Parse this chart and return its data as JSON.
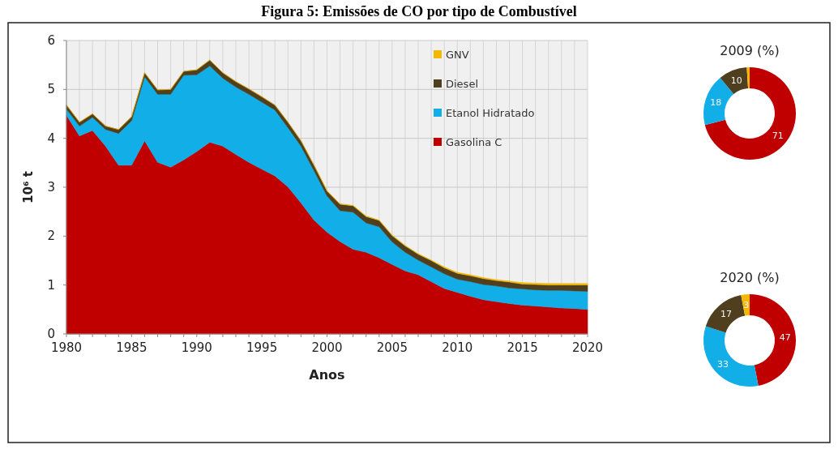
{
  "chart_data": [
    {
      "type": "area",
      "title": "Figura 5: Emissões de CO por tipo de Combustível",
      "xlabel": "Anos",
      "ylabel": "10⁶ t",
      "stacked": true,
      "grid": true,
      "legend": "top right",
      "x": [
        1980,
        1981,
        1982,
        1983,
        1984,
        1985,
        1986,
        1987,
        1988,
        1989,
        1990,
        1991,
        1992,
        1993,
        1994,
        1995,
        1996,
        1997,
        1998,
        1999,
        2000,
        2001,
        2002,
        2003,
        2004,
        2005,
        2006,
        2007,
        2008,
        2009,
        2010,
        2011,
        2012,
        2013,
        2014,
        2015,
        2016,
        2017,
        2018,
        2019,
        2020
      ],
      "xlim": [
        1980,
        2020
      ],
      "xticks": [
        1980,
        {
          "value": 1981,
          "label": null
        },
        {
          "value": 1982,
          "label": null
        },
        {
          "value": 1983,
          "label": null
        },
        {
          "value": 1984,
          "label": null
        },
        1985,
        {
          "value": 1986,
          "label": null
        },
        {
          "value": 1987,
          "label": null
        },
        {
          "value": 1988,
          "label": null
        },
        {
          "value": 1989,
          "label": null
        },
        1990,
        {
          "value": 1991,
          "label": null
        },
        {
          "value": 1992,
          "label": null
        },
        {
          "value": 1993,
          "label": null
        },
        {
          "value": 1994,
          "label": null
        },
        1995,
        {
          "value": 1996,
          "label": null
        },
        {
          "value": 1997,
          "label": null
        },
        {
          "value": 1998,
          "label": null
        },
        {
          "value": 1999,
          "label": null
        },
        2000,
        {
          "value": 2001,
          "label": null
        },
        {
          "value": 2002,
          "label": null
        },
        {
          "value": 2003,
          "label": null
        },
        {
          "value": 2004,
          "label": null
        },
        2005,
        {
          "value": 2006,
          "label": null
        },
        {
          "value": 2007,
          "label": null
        },
        {
          "value": 2008,
          "label": null
        },
        {
          "value": 2009,
          "label": null
        },
        2010,
        {
          "value": 2011,
          "label": null
        },
        {
          "value": 2012,
          "label": null
        },
        {
          "value": 2013,
          "label": null
        },
        {
          "value": 2014,
          "label": null
        },
        2015,
        {
          "value": 2016,
          "label": null
        },
        {
          "value": 2017,
          "label": null
        },
        {
          "value": 2018,
          "label": null
        },
        {
          "value": 2019,
          "label": null
        },
        2020
      ],
      "ylim": [
        0,
        6
      ],
      "yticks": [
        0,
        1,
        2,
        3,
        4,
        5,
        6
      ],
      "series": [
        {
          "name": "Gasolina C",
          "color": "#c00000",
          "values": [
            4.47,
            4.05,
            4.16,
            3.84,
            3.45,
            3.45,
            3.95,
            3.51,
            3.41,
            3.56,
            3.73,
            3.92,
            3.84,
            3.67,
            3.51,
            3.37,
            3.23,
            3.01,
            2.68,
            2.33,
            2.08,
            1.89,
            1.73,
            1.67,
            1.56,
            1.42,
            1.29,
            1.21,
            1.07,
            0.93,
            0.85,
            0.77,
            0.7,
            0.66,
            0.62,
            0.59,
            0.57,
            0.55,
            0.53,
            0.52,
            0.5
          ]
        },
        {
          "name": "Etanol Hidratado",
          "color": "#12aee8",
          "values": [
            0.13,
            0.2,
            0.27,
            0.34,
            0.65,
            0.91,
            1.31,
            1.39,
            1.49,
            1.73,
            1.57,
            1.56,
            1.39,
            1.38,
            1.39,
            1.37,
            1.35,
            1.21,
            1.16,
            1.01,
            0.74,
            0.63,
            0.76,
            0.6,
            0.63,
            0.46,
            0.38,
            0.3,
            0.3,
            0.3,
            0.27,
            0.3,
            0.31,
            0.32,
            0.32,
            0.33,
            0.33,
            0.34,
            0.36,
            0.36,
            0.37
          ]
        },
        {
          "name": "Diesel",
          "color": "#4f3f1f",
          "values": [
            0.08,
            0.08,
            0.07,
            0.07,
            0.08,
            0.08,
            0.08,
            0.09,
            0.1,
            0.08,
            0.1,
            0.12,
            0.11,
            0.11,
            0.11,
            0.11,
            0.1,
            0.11,
            0.11,
            0.11,
            0.1,
            0.13,
            0.13,
            0.13,
            0.13,
            0.13,
            0.13,
            0.12,
            0.13,
            0.12,
            0.12,
            0.12,
            0.12,
            0.11,
            0.12,
            0.1,
            0.11,
            0.11,
            0.11,
            0.12,
            0.13
          ]
        },
        {
          "name": "GNV",
          "color": "#f5b800",
          "values": [
            0,
            0,
            0,
            0,
            0,
            0,
            0,
            0,
            0,
            0,
            0,
            0,
            0,
            0,
            0,
            0,
            0,
            0,
            0,
            0,
            0.01,
            0.01,
            0.01,
            0.01,
            0.01,
            0.01,
            0.01,
            0.01,
            0.01,
            0.02,
            0.02,
            0.02,
            0.02,
            0.02,
            0.02,
            0.03,
            0.03,
            0.03,
            0.03,
            0.03,
            0.03
          ]
        }
      ]
    },
    {
      "type": "donut",
      "title": "2009 (%)",
      "categories": [
        null,
        null,
        null,
        null
      ],
      "values": [
        71,
        18,
        10,
        1
      ],
      "colors": [
        "#c00000",
        "#12aee8",
        "#4f3f1f",
        "#f5b800"
      ],
      "value_labels": [
        "71",
        "18",
        "10",
        null
      ]
    },
    {
      "type": "donut",
      "title": "2020 (%)",
      "categories": [
        null,
        null,
        null,
        null
      ],
      "values": [
        47,
        33,
        17,
        3
      ],
      "colors": [
        "#c00000",
        "#12aee8",
        "#4f3f1f",
        "#f5b800"
      ],
      "data_labels": true
    }
  ]
}
